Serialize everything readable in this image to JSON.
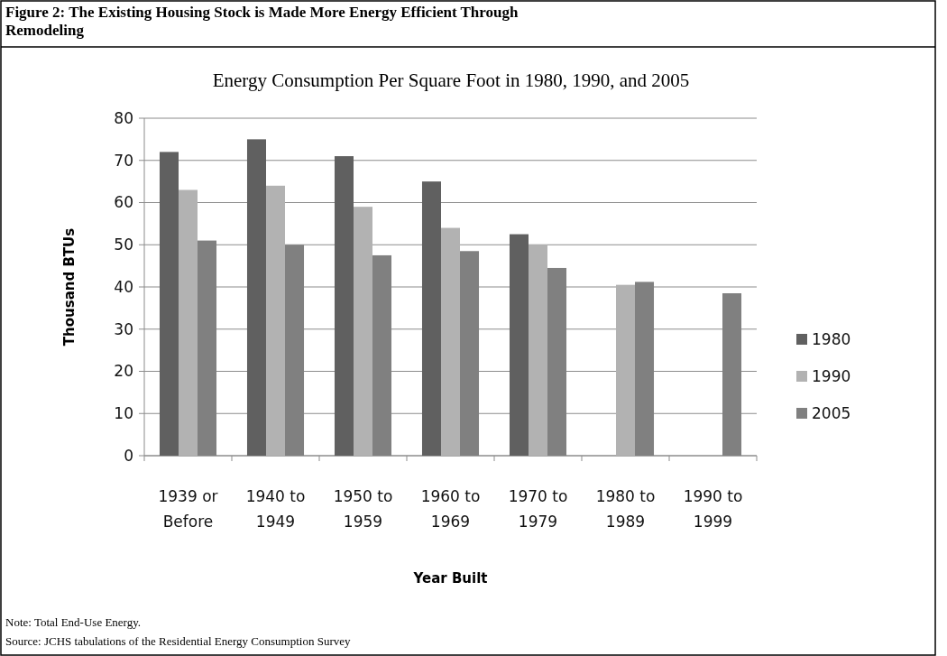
{
  "chart_data": {
    "type": "bar",
    "title": "Figure 2: The Existing Housing Stock is Made More Energy Efficient Through Remodeling",
    "subtitle": "Energy Consumption Per Square Foot in 1980, 1990, and 2005",
    "xlabel": "Year Built",
    "ylabel": "Thousand BTUs",
    "categories": [
      "1939 or Before",
      "1940 to 1949",
      "1950 to 1959",
      "1960 to 1969",
      "1970 to 1979",
      "1980 to 1989",
      "1990 to 1999"
    ],
    "series": [
      {
        "name": "1980",
        "color": "#606060",
        "values": [
          72,
          75,
          71,
          65,
          52.5,
          null,
          null
        ]
      },
      {
        "name": "1990",
        "color": "#b2b2b2",
        "values": [
          63,
          64,
          59,
          54,
          50,
          40.5,
          null
        ]
      },
      {
        "name": "2005",
        "color": "#808080",
        "values": [
          51,
          50,
          47.5,
          48.5,
          44.5,
          41.2,
          38.5
        ]
      }
    ],
    "ylim": [
      0,
      80
    ],
    "yticks": [
      0,
      10,
      20,
      30,
      40,
      50,
      60,
      70,
      80
    ],
    "grid": "y",
    "legend": "right",
    "annotations": [
      "Note: Total End-Use Energy.",
      "Source: JCHS tabulations of the Residential Energy Consumption Survey"
    ]
  }
}
